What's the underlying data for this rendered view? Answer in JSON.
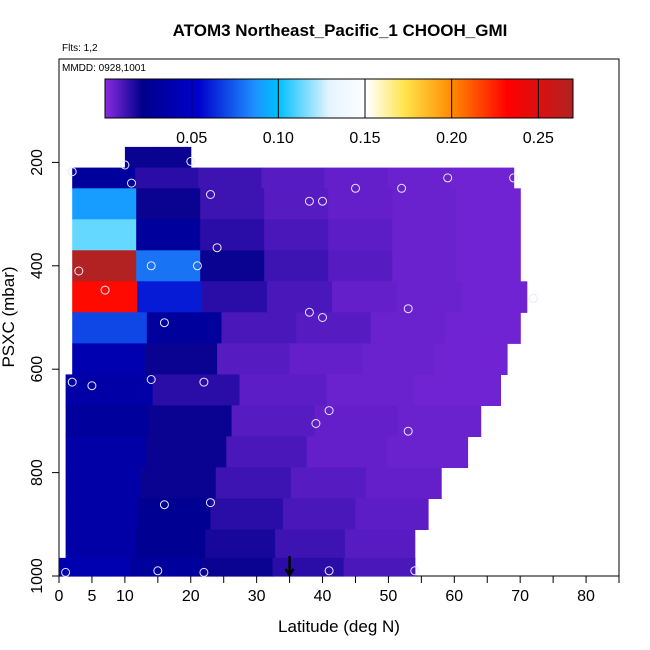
{
  "chart_data": {
    "type": "heatmap",
    "title": "ATOM3 Northeast_Pacific_1 CHOOH_GMI",
    "flights_note": "Flts: 1,2",
    "date_note": "MMDD: 0928,1001",
    "xlabel": "Latitude (deg N)",
    "ylabel": "PSXC (mbar)",
    "xlim": [
      0,
      85
    ],
    "ylim": [
      1000,
      0
    ],
    "x_ticks": [
      0,
      5,
      10,
      20,
      30,
      40,
      50,
      60,
      70,
      80
    ],
    "y_ticks": [
      200,
      400,
      600,
      800,
      1000
    ],
    "colorbar": {
      "range": [
        0,
        0.27
      ],
      "ticks": [
        0.05,
        0.1,
        0.15,
        0.2,
        0.25
      ],
      "tick_labels": [
        "0.05",
        "0.10",
        "0.15",
        "0.20",
        "0.25"
      ],
      "colors": [
        "#8a2be2",
        "#00008b",
        "#0000cd",
        "#1e90ff",
        "#00bfff",
        "#ffffff",
        "#ffd700",
        "#ff8c00",
        "#ff0000",
        "#b22222"
      ]
    },
    "marker_latitude": 35,
    "levels": [
      {
        "p": 200,
        "x0": 10,
        "x1": 20,
        "values": [
          0.02,
          0.02
        ]
      },
      {
        "p": 220,
        "x0": 2,
        "x1": 69,
        "values": [
          0.03,
          0.015,
          0.012,
          0.008,
          0.006,
          0.005,
          0.004
        ]
      },
      {
        "p": 280,
        "x0": 2,
        "x1": 70,
        "values": [
          0.09,
          0.02,
          0.012,
          0.008,
          0.006,
          0.005,
          0.004
        ]
      },
      {
        "p": 340,
        "x0": 2,
        "x1": 70,
        "values": [
          0.12,
          0.03,
          0.015,
          0.01,
          0.007,
          0.005,
          0.004
        ]
      },
      {
        "p": 400,
        "x0": 2,
        "x1": 70,
        "values": [
          0.27,
          0.08,
          0.02,
          0.012,
          0.008,
          0.005,
          0.004
        ]
      },
      {
        "p": 460,
        "x0": 2,
        "x1": 71,
        "values": [
          0.23,
          0.06,
          0.015,
          0.01,
          0.006,
          0.005,
          0.004
        ]
      },
      {
        "p": 520,
        "x0": 2,
        "x1": 70,
        "values": [
          0.07,
          0.03,
          0.01,
          0.008,
          0.005,
          0.004
        ]
      },
      {
        "p": 580,
        "x0": 2,
        "x1": 68,
        "values": [
          0.04,
          0.02,
          0.008,
          0.006,
          0.005,
          0.004
        ]
      },
      {
        "p": 640,
        "x0": 1,
        "x1": 67,
        "values": [
          0.035,
          0.015,
          0.007,
          0.005,
          0.004
        ]
      },
      {
        "p": 700,
        "x0": 1,
        "x1": 64,
        "values": [
          0.03,
          0.02,
          0.008,
          0.006,
          0.005
        ]
      },
      {
        "p": 760,
        "x0": 1,
        "x1": 62,
        "values": [
          0.035,
          0.02,
          0.01,
          0.006,
          0.005
        ]
      },
      {
        "p": 820,
        "x0": 1,
        "x1": 58,
        "values": [
          0.035,
          0.02,
          0.012,
          0.008,
          0.006
        ]
      },
      {
        "p": 880,
        "x0": 1,
        "x1": 56,
        "values": [
          0.035,
          0.025,
          0.015,
          0.01,
          0.007
        ]
      },
      {
        "p": 940,
        "x0": 1,
        "x1": 54,
        "values": [
          0.035,
          0.025,
          0.018,
          0.012,
          0.008
        ]
      },
      {
        "p": 990,
        "x0": 0,
        "x1": 54,
        "values": [
          0.04,
          0.03,
          0.02,
          0.015,
          0.01
        ]
      }
    ],
    "samples": [
      {
        "lat": 2,
        "p": 218
      },
      {
        "lat": 10,
        "p": 205
      },
      {
        "lat": 20,
        "p": 198
      },
      {
        "lat": 11,
        "p": 240
      },
      {
        "lat": 23,
        "p": 262
      },
      {
        "lat": 38,
        "p": 275
      },
      {
        "lat": 40,
        "p": 275
      },
      {
        "lat": 45,
        "p": 250
      },
      {
        "lat": 52,
        "p": 250
      },
      {
        "lat": 59,
        "p": 230
      },
      {
        "lat": 69,
        "p": 230
      },
      {
        "lat": 24,
        "p": 365
      },
      {
        "lat": 14,
        "p": 400
      },
      {
        "lat": 21,
        "p": 400
      },
      {
        "lat": 3,
        "p": 410
      },
      {
        "lat": 7,
        "p": 447
      },
      {
        "lat": 72,
        "p": 463
      },
      {
        "lat": 53,
        "p": 483
      },
      {
        "lat": 38,
        "p": 490
      },
      {
        "lat": 40,
        "p": 500
      },
      {
        "lat": 16,
        "p": 510
      },
      {
        "lat": 2,
        "p": 625
      },
      {
        "lat": 5,
        "p": 632
      },
      {
        "lat": 14,
        "p": 620
      },
      {
        "lat": 22,
        "p": 625
      },
      {
        "lat": 41,
        "p": 680
      },
      {
        "lat": 39,
        "p": 705
      },
      {
        "lat": 53,
        "p": 720
      },
      {
        "lat": 16,
        "p": 862
      },
      {
        "lat": 23,
        "p": 858
      },
      {
        "lat": 1,
        "p": 993
      },
      {
        "lat": 15,
        "p": 990
      },
      {
        "lat": 22,
        "p": 993
      },
      {
        "lat": 41,
        "p": 990
      },
      {
        "lat": 54,
        "p": 990
      }
    ]
  }
}
